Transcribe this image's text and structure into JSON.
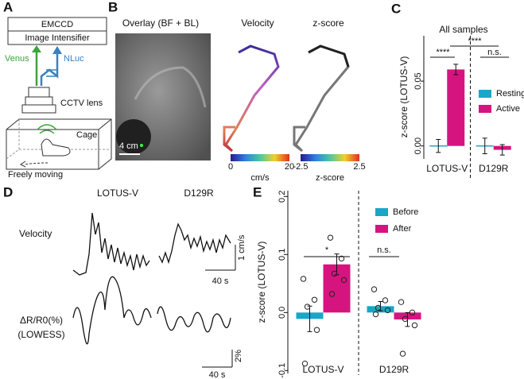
{
  "panel_labels": [
    "A",
    "B",
    "C",
    "D",
    "E"
  ],
  "setup": {
    "camera": "EMCCD",
    "intensifier": "Image Intensifier",
    "venus": "Venus",
    "nluc": "NLuc",
    "lens": "CCTV lens",
    "cage": "Cage",
    "moving": "Freely moving"
  },
  "imaging": {
    "overlay_title": "Overlay (BF + BL)",
    "scale_bar": "4 cm",
    "maps": [
      {
        "title": "Velocity",
        "min": 0,
        "max": 20,
        "unit": "cm/s"
      },
      {
        "title": "z-score",
        "min": -2.5,
        "max": 2.5,
        "unit": "z-score"
      }
    ]
  },
  "traces": {
    "columns": [
      "LOTUS-V",
      "D129R"
    ],
    "velocity_label": "Velocity",
    "ratio_label": "ΔR/R0(%)",
    "ratio_sublabel": "(LOWESS)",
    "velocity_scale": "1 cm/s",
    "velocity_time": "40 s",
    "ratio_scale": "2%",
    "ratio_time": "40 s"
  },
  "chart_data": [
    {
      "type": "bar",
      "title": "All samples",
      "y_label": "z-score (LOTUS-V)",
      "categories": [
        "LOTUS-V",
        "D129R"
      ],
      "series": [
        {
          "name": "Resting",
          "color": "#1ba5c9",
          "values": [
            0,
            0
          ],
          "errors": [
            0.005,
            0.006
          ]
        },
        {
          "name": "Active",
          "color": "#d6147f",
          "values": [
            0.059,
            -0.003
          ],
          "errors": [
            0.004,
            0.004
          ]
        }
      ],
      "ylim": [
        -0.01,
        0.085
      ],
      "yticks": [
        {
          "value": 0,
          "label": "0.00"
        },
        {
          "value": 0.05,
          "label": "0.05"
        }
      ],
      "annotations": [
        "****",
        "****",
        "n.s."
      ],
      "legend": "right"
    },
    {
      "type": "bar",
      "y_label": "z-score (LOTUS-V)",
      "categories": [
        "LOTUS-V",
        "D129R"
      ],
      "series": [
        {
          "name": "Before",
          "color": "#1ba5c9",
          "values": [
            -0.011,
            0.011
          ],
          "errors": [
            0.022,
            0.008
          ],
          "points": [
            [
              0.058,
              0.022,
              0.01,
              -0.03,
              -0.088
            ],
            [
              0.04,
              0.021,
              0.008,
              0.004,
              -0.003
            ]
          ]
        },
        {
          "name": "After",
          "color": "#d6147f",
          "values": [
            0.083,
            -0.012
          ],
          "errors": [
            0.018,
            0.012
          ],
          "points": [
            [
              0.129,
              0.093,
              0.067,
              0.056,
              0.032
            ],
            [
              0.018,
              0.0,
              -0.011,
              -0.022,
              -0.071
            ]
          ]
        }
      ],
      "ylim": [
        -0.105,
        0.21
      ],
      "yticks": [
        {
          "value": -0.1,
          "label": "-0.1"
        },
        {
          "value": 0,
          "label": "0.0"
        },
        {
          "value": 0.1,
          "label": "0.1"
        },
        {
          "value": 0.2,
          "label": "0.2"
        }
      ],
      "annotations": [
        "*",
        "n.s."
      ],
      "legend": "right"
    }
  ]
}
